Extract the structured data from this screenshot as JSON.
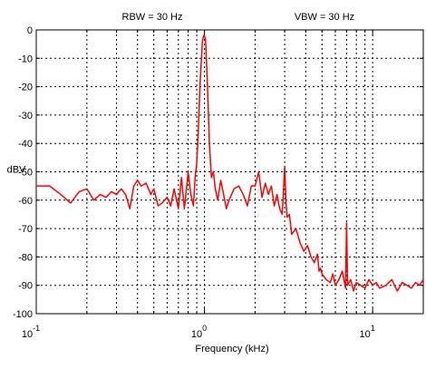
{
  "chart_data": {
    "type": "line",
    "annotations": [
      "RBW = 30 Hz",
      "VBW = 30 Hz"
    ],
    "xlabel": "Frequency (kHz)",
    "ylabel": "dBV",
    "xscale": "log",
    "xlim": [
      0.1,
      20
    ],
    "ylim": [
      -100,
      0
    ],
    "grid": true,
    "x_ticks": [
      {
        "base": "10",
        "exp": "-1"
      },
      {
        "base": "10",
        "exp": "0"
      },
      {
        "base": "10",
        "exp": "1"
      }
    ],
    "y_ticks": [
      "0",
      "-10",
      "-20",
      "-30",
      "-40",
      "-50",
      "-60",
      "-70",
      "-80",
      "-90",
      "-100"
    ],
    "line_color": "#ff0000",
    "series": [
      {
        "x": [
          0.1,
          0.12,
          0.14,
          0.16,
          0.18,
          0.2,
          0.22,
          0.24,
          0.26,
          0.28,
          0.3,
          0.32,
          0.34,
          0.36,
          0.38,
          0.4,
          0.42,
          0.45,
          0.48,
          0.5,
          0.53,
          0.56,
          0.6,
          0.63,
          0.66,
          0.7,
          0.73,
          0.76,
          0.8,
          0.83,
          0.86,
          0.88,
          0.9,
          0.92,
          0.94,
          0.96,
          0.97,
          0.98,
          0.99,
          1.0,
          1.01,
          1.02,
          1.03,
          1.05,
          1.07,
          1.1,
          1.13,
          1.16,
          1.2,
          1.25,
          1.3,
          1.35,
          1.4,
          1.5,
          1.6,
          1.7,
          1.8,
          1.9,
          2.0,
          2.1,
          2.2,
          2.3,
          2.4,
          2.5,
          2.6,
          2.7,
          2.8,
          2.9,
          3.0,
          3.05,
          3.1,
          3.2,
          3.3,
          3.5,
          3.7,
          3.9,
          4.1,
          4.3,
          4.5,
          4.7,
          4.8,
          4.9,
          5.0,
          5.3,
          5.6,
          5.8,
          6.0,
          6.3,
          6.6,
          6.9,
          7.0,
          7.1,
          7.4,
          7.7,
          8.0,
          8.5,
          9.0,
          9.5,
          10.0,
          10.5,
          11,
          12,
          13,
          14,
          15,
          16,
          17,
          18,
          19,
          20
        ],
        "y": [
          -55,
          -55,
          -58,
          -61,
          -57,
          -56,
          -60,
          -58,
          -59,
          -57,
          -58,
          -56,
          -58,
          -63,
          -55,
          -53,
          -55,
          -54,
          -58,
          -56,
          -62,
          -61,
          -59,
          -62,
          -56,
          -63,
          -52,
          -63,
          -50,
          -58,
          -62,
          -52,
          -47,
          -35,
          -20,
          -10,
          -5,
          -3,
          -2,
          -2,
          -3,
          -6,
          -12,
          -25,
          -40,
          -52,
          -50,
          -56,
          -60,
          -53,
          -58,
          -63,
          -60,
          -56,
          -55,
          -58,
          -62,
          -55,
          -55,
          -50,
          -59,
          -54,
          -58,
          -55,
          -62,
          -58,
          -63,
          -65,
          -48,
          -60,
          -66,
          -65,
          -72,
          -70,
          -75,
          -78,
          -76,
          -80,
          -82,
          -79,
          -85,
          -84,
          -86,
          -88,
          -89,
          -86,
          -90,
          -88,
          -85,
          -91,
          -68,
          -90,
          -88,
          -92,
          -89,
          -90,
          -91,
          -88,
          -90,
          -89,
          -91,
          -90,
          -88,
          -92,
          -89,
          -90,
          -91,
          -89,
          -90,
          -88
        ]
      }
    ]
  }
}
